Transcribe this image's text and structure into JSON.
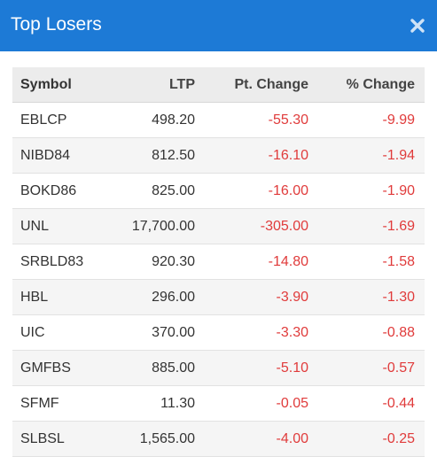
{
  "dialog": {
    "title": "Top Losers",
    "close_icon": "close-icon"
  },
  "table": {
    "headers": [
      "Symbol",
      "LTP",
      "Pt. Change",
      "% Change"
    ],
    "rows": [
      {
        "symbol": "EBLCP",
        "ltp": "498.20",
        "pt_change": "-55.30",
        "pct_change": "-9.99"
      },
      {
        "symbol": "NIBD84",
        "ltp": "812.50",
        "pt_change": "-16.10",
        "pct_change": "-1.94"
      },
      {
        "symbol": "BOKD86",
        "ltp": "825.00",
        "pt_change": "-16.00",
        "pct_change": "-1.90"
      },
      {
        "symbol": "UNL",
        "ltp": "17,700.00",
        "pt_change": "-305.00",
        "pct_change": "-1.69"
      },
      {
        "symbol": "SRBLD83",
        "ltp": "920.30",
        "pt_change": "-14.80",
        "pct_change": "-1.58"
      },
      {
        "symbol": "HBL",
        "ltp": "296.00",
        "pt_change": "-3.90",
        "pct_change": "-1.30"
      },
      {
        "symbol": "UIC",
        "ltp": "370.00",
        "pt_change": "-3.30",
        "pct_change": "-0.88"
      },
      {
        "symbol": "GMFBS",
        "ltp": "885.00",
        "pt_change": "-5.10",
        "pct_change": "-0.57"
      },
      {
        "symbol": "SFMF",
        "ltp": "11.30",
        "pt_change": "-0.05",
        "pct_change": "-0.44"
      },
      {
        "symbol": "SLBSL",
        "ltp": "1,565.00",
        "pt_change": "-4.00",
        "pct_change": "-0.25"
      }
    ]
  },
  "colors": {
    "header_bg": "#1d7ad6",
    "negative": "#e03b3b"
  }
}
